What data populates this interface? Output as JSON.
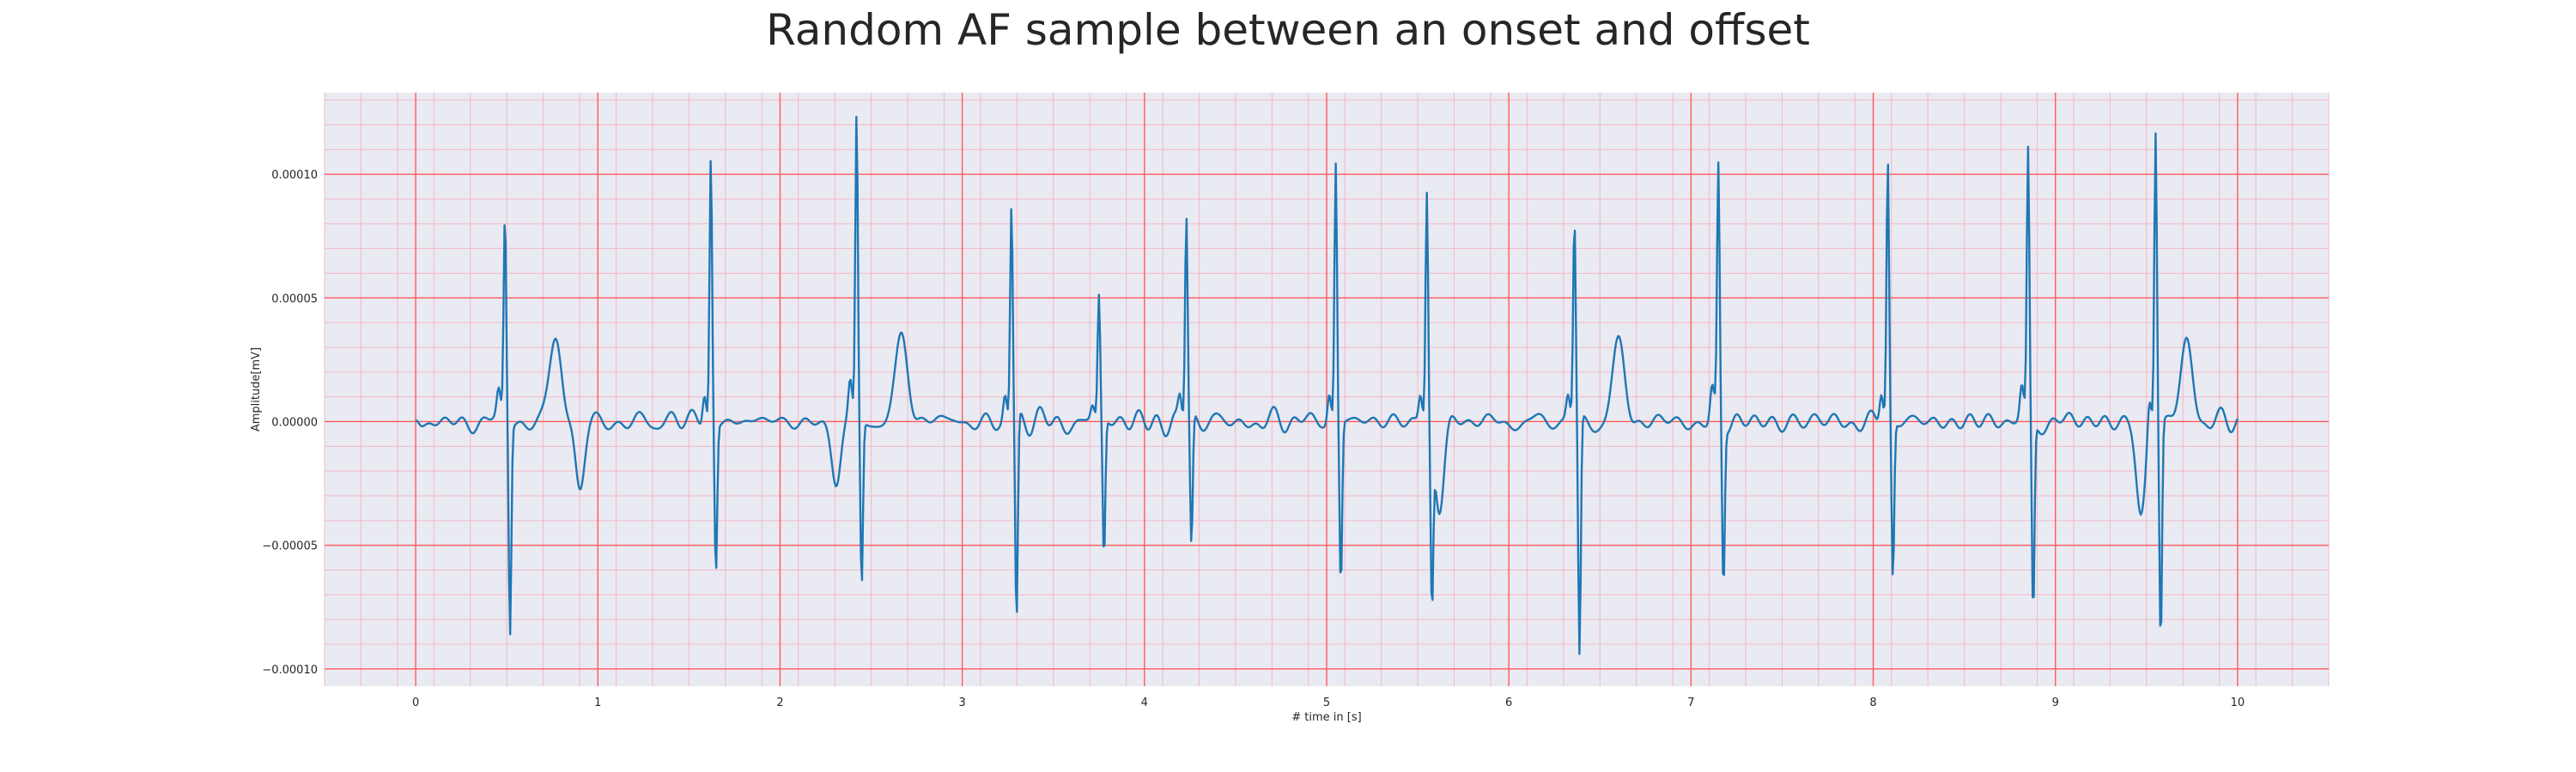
{
  "chart_data": {
    "type": "line",
    "title": "Random AF sample between an onset and offset",
    "xlabel": "# time in [s]",
    "ylabel": "Amplitude[mV]",
    "xlim": [
      -0.5,
      10.5
    ],
    "ylim": [
      -0.000107,
      0.000133
    ],
    "xticks": [
      0,
      1,
      2,
      3,
      4,
      5,
      6,
      7,
      8,
      9,
      10
    ],
    "xtick_labels": [
      "0",
      "1",
      "2",
      "3",
      "4",
      "5",
      "6",
      "7",
      "8",
      "9",
      "10"
    ],
    "yticks": [
      -0.0001,
      -5e-05,
      0,
      5e-05,
      0.0001
    ],
    "ytick_labels": [
      "−0.00010",
      "−0.00005",
      "0.00000",
      "0.00005",
      "0.00010"
    ],
    "grid": true,
    "background_color": "#eaeaf2",
    "grid_major_color": "#ff5a5a",
    "grid_minor_color": "#f2b8c4",
    "series_color": "#1f77b4",
    "beats": [
      {
        "t": 0.49,
        "peak": 8.2e-05,
        "trough": -8.5e-05
      },
      {
        "t": 1.62,
        "peak": 0.000108,
        "trough": -6e-05
      },
      {
        "t": 2.42,
        "peak": 0.000123,
        "trough": -6.7e-05
      },
      {
        "t": 3.27,
        "peak": 8.7e-05,
        "trough": -8.4e-05
      },
      {
        "t": 3.75,
        "peak": 5e-05,
        "trough": -5.7e-05
      },
      {
        "t": 4.23,
        "peak": 8.4e-05,
        "trough": -5.3e-05
      },
      {
        "t": 5.05,
        "peak": 0.000106,
        "trough": -6.6e-05
      },
      {
        "t": 5.55,
        "peak": 9.4e-05,
        "trough": -6.7e-05
      },
      {
        "t": 6.36,
        "peak": 8.1e-05,
        "trough": -9.7e-05
      },
      {
        "t": 7.15,
        "peak": 0.0001,
        "trough": -6.6e-05
      },
      {
        "t": 8.08,
        "peak": 0.000105,
        "trough": -6.4e-05
      },
      {
        "t": 8.85,
        "peak": 0.000108,
        "trough": -7.9e-05
      },
      {
        "t": 9.55,
        "peak": 0.000118,
        "trough": -9e-05
      }
    ],
    "t_waves": [
      {
        "t": 0.77,
        "amp": 3.4e-05
      },
      {
        "t": 2.67,
        "amp": 3.4e-05
      },
      {
        "t": 6.6,
        "amp": 2.9e-05
      },
      {
        "t": 9.72,
        "amp": 3e-05
      }
    ],
    "dips": [
      {
        "t": 0.9,
        "amp": -3e-05
      },
      {
        "t": 2.31,
        "amp": -2.5e-05
      },
      {
        "t": 5.62,
        "amp": -3.5e-05
      },
      {
        "t": 9.47,
        "amp": -3.8e-05
      }
    ],
    "noise_amplitude": 9e-06,
    "samples": 1600,
    "t_end": 10.0
  }
}
